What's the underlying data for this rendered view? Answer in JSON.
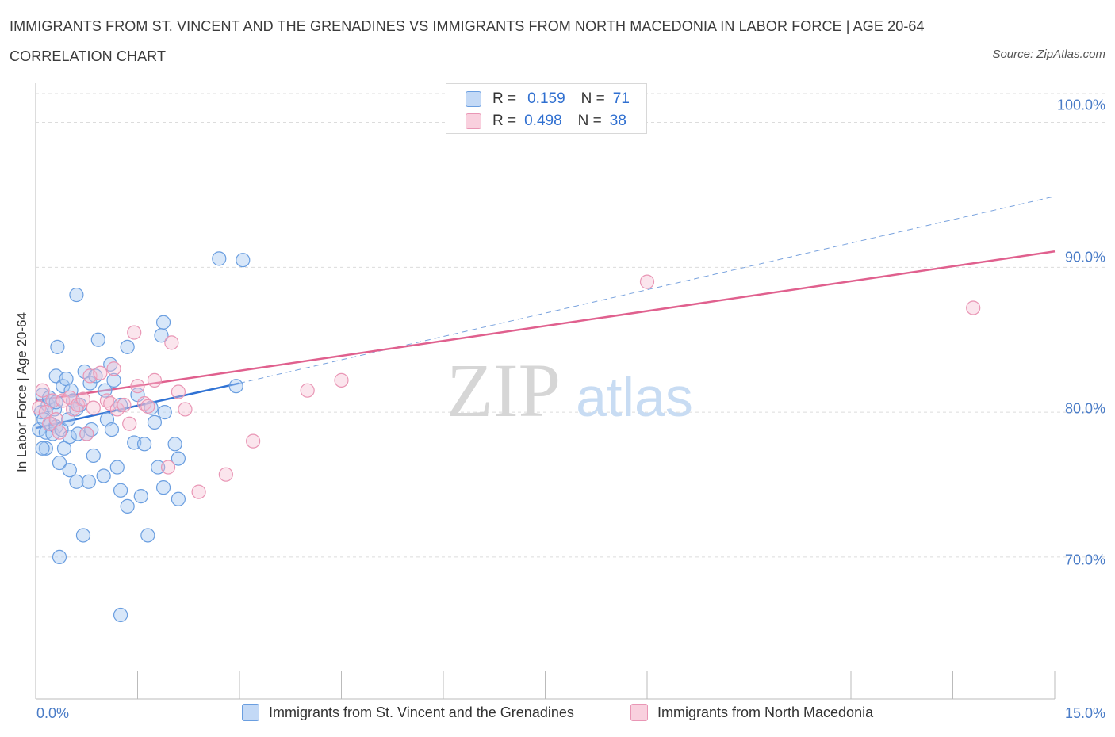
{
  "title": "IMMIGRANTS FROM ST. VINCENT AND THE GRENADINES VS IMMIGRANTS FROM NORTH MACEDONIA IN LABOR FORCE | AGE 20-64 CORRELATION CHART",
  "source": "Source: ZipAtlas.com",
  "watermark": {
    "zip": "ZIP",
    "atlas": "atlas"
  },
  "colors": {
    "blue_fill": "#a9c9f2",
    "blue_stroke": "#6a9ee0",
    "blue_line": "#2f72d4",
    "pink_fill": "#f6bfd2",
    "pink_stroke": "#e996b5",
    "pink_line": "#e0608e",
    "tick_text": "#4a7cc7",
    "grid": "#dcdcdc"
  },
  "legend": {
    "rows": [
      {
        "r_label": "R =",
        "r_value": "0.159",
        "n_label": "N =",
        "n_value": "71"
      },
      {
        "r_label": "R =",
        "r_value": "0.498",
        "n_label": "N =",
        "n_value": "38"
      }
    ]
  },
  "bottom_legend": {
    "series1": "Immigrants from St. Vincent and the Grenadines",
    "series2": "Immigrants from North Macedonia"
  },
  "chart_data": {
    "type": "scatter",
    "title": "IMMIGRANTS FROM ST. VINCENT AND THE GRENADINES VS IMMIGRANTS FROM NORTH MACEDONIA IN LABOR FORCE | AGE 20-64 CORRELATION CHART",
    "xlabel": "",
    "ylabel": "In Labor Force | Age 20-64",
    "xlim": [
      0,
      15
    ],
    "ylim": [
      60.2,
      102
    ],
    "x_tick_labels": [
      "0.0%",
      "15.0%"
    ],
    "y_ticks": [
      70,
      80,
      90,
      100
    ],
    "y_tick_labels": [
      "70.0%",
      "80.0%",
      "90.0%",
      "100.0%"
    ],
    "grid": true,
    "series": [
      {
        "name": "Immigrants from St. Vincent and the Grenadines",
        "color": "blue",
        "R": 0.159,
        "N": 71,
        "trend": {
          "x0": 0,
          "y0": 78.9,
          "x1": 3.0,
          "y1": 82.0,
          "dashed_to_x": 15,
          "dashed_to_y": 94.9
        },
        "points": [
          [
            0.05,
            78.8
          ],
          [
            0.08,
            80.0
          ],
          [
            0.1,
            81.2
          ],
          [
            0.12,
            79.5
          ],
          [
            0.15,
            78.6
          ],
          [
            0.15,
            77.5
          ],
          [
            0.18,
            80.5
          ],
          [
            0.2,
            81.0
          ],
          [
            0.22,
            79.2
          ],
          [
            0.25,
            78.5
          ],
          [
            0.28,
            80.2
          ],
          [
            0.3,
            82.5
          ],
          [
            0.3,
            79.0
          ],
          [
            0.32,
            84.5
          ],
          [
            0.35,
            76.5
          ],
          [
            0.35,
            70.0
          ],
          [
            0.38,
            78.8
          ],
          [
            0.4,
            81.8
          ],
          [
            0.42,
            77.5
          ],
          [
            0.45,
            82.3
          ],
          [
            0.48,
            79.5
          ],
          [
            0.5,
            76.0
          ],
          [
            0.5,
            78.3
          ],
          [
            0.52,
            81.5
          ],
          [
            0.55,
            80.8
          ],
          [
            0.6,
            88.1
          ],
          [
            0.6,
            75.2
          ],
          [
            0.62,
            78.5
          ],
          [
            0.65,
            80.5
          ],
          [
            0.7,
            71.5
          ],
          [
            0.72,
            82.8
          ],
          [
            0.75,
            78.5
          ],
          [
            0.78,
            75.2
          ],
          [
            0.8,
            82.0
          ],
          [
            0.82,
            78.8
          ],
          [
            0.85,
            77.0
          ],
          [
            0.88,
            82.5
          ],
          [
            0.92,
            85.0
          ],
          [
            1.0,
            75.6
          ],
          [
            1.02,
            81.5
          ],
          [
            1.05,
            79.5
          ],
          [
            1.1,
            83.3
          ],
          [
            1.12,
            78.8
          ],
          [
            1.15,
            82.2
          ],
          [
            1.2,
            76.2
          ],
          [
            1.25,
            80.5
          ],
          [
            1.25,
            74.6
          ],
          [
            1.35,
            73.5
          ],
          [
            1.35,
            84.5
          ],
          [
            1.45,
            77.9
          ],
          [
            1.5,
            81.2
          ],
          [
            1.55,
            74.2
          ],
          [
            1.6,
            77.8
          ],
          [
            1.65,
            71.5
          ],
          [
            1.7,
            80.3
          ],
          [
            1.75,
            79.3
          ],
          [
            1.8,
            76.2
          ],
          [
            1.85,
            85.3
          ],
          [
            1.88,
            86.2
          ],
          [
            1.88,
            74.8
          ],
          [
            1.9,
            80.0
          ],
          [
            2.05,
            77.8
          ],
          [
            2.1,
            76.8
          ],
          [
            2.1,
            74.0
          ],
          [
            2.7,
            90.6
          ],
          [
            3.05,
            90.5
          ],
          [
            2.95,
            81.8
          ],
          [
            1.25,
            66.0
          ],
          [
            0.1,
            77.5
          ],
          [
            0.3,
            80.7
          ],
          [
            0.6,
            80.2
          ]
        ]
      },
      {
        "name": "Immigrants from North Macedonia",
        "color": "pink",
        "R": 0.498,
        "N": 38,
        "trend": {
          "x0": 0,
          "y0": 80.8,
          "x1": 15,
          "y1": 91.1
        },
        "points": [
          [
            0.05,
            80.3
          ],
          [
            0.1,
            81.5
          ],
          [
            0.15,
            80.0
          ],
          [
            0.2,
            79.2
          ],
          [
            0.25,
            80.8
          ],
          [
            0.3,
            79.5
          ],
          [
            0.35,
            78.6
          ],
          [
            0.4,
            80.8
          ],
          [
            0.5,
            81.0
          ],
          [
            0.55,
            80.2
          ],
          [
            0.62,
            80.5
          ],
          [
            0.7,
            80.9
          ],
          [
            0.75,
            78.5
          ],
          [
            0.8,
            82.5
          ],
          [
            0.85,
            80.3
          ],
          [
            0.95,
            82.7
          ],
          [
            1.05,
            80.8
          ],
          [
            1.1,
            80.6
          ],
          [
            1.15,
            83.0
          ],
          [
            1.2,
            80.2
          ],
          [
            1.3,
            80.5
          ],
          [
            1.38,
            79.2
          ],
          [
            1.45,
            85.5
          ],
          [
            1.5,
            81.8
          ],
          [
            1.6,
            80.6
          ],
          [
            1.65,
            80.4
          ],
          [
            1.75,
            82.2
          ],
          [
            1.95,
            76.2
          ],
          [
            2.0,
            84.8
          ],
          [
            2.1,
            81.4
          ],
          [
            2.2,
            80.2
          ],
          [
            2.4,
            74.5
          ],
          [
            2.8,
            75.7
          ],
          [
            3.2,
            78.0
          ],
          [
            4.0,
            81.5
          ],
          [
            4.5,
            82.2
          ],
          [
            9.0,
            89.0
          ],
          [
            13.8,
            87.2
          ]
        ]
      }
    ]
  }
}
